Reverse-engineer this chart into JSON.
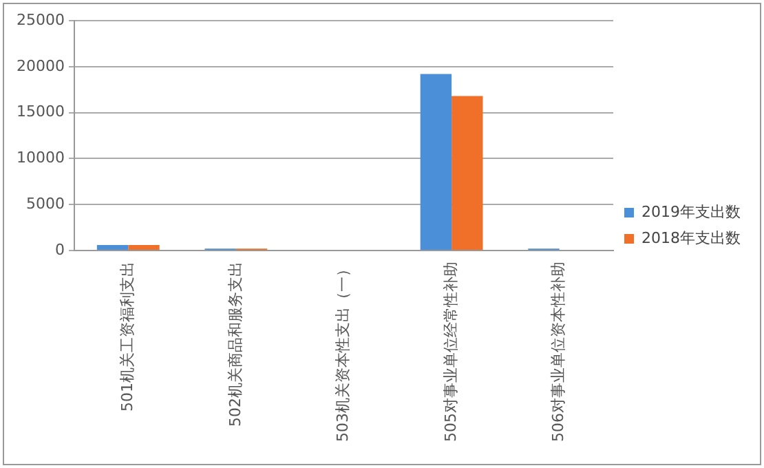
{
  "chart_data": {
    "type": "bar",
    "categories": [
      "501机关工资福利支出",
      "502机关商品和服务支出",
      "503机关资本性支出（一）",
      "505对事业单位经常性补助",
      "506对事业单位资本性补助"
    ],
    "series": [
      {
        "name": "2019年支出数",
        "color": "#4a8fd8",
        "values": [
          600,
          200,
          0,
          19200,
          200
        ]
      },
      {
        "name": "2018年支出数",
        "color": "#f0702a",
        "values": [
          600,
          200,
          0,
          16800,
          0
        ]
      }
    ],
    "ylim": [
      0,
      25000
    ],
    "yticks": [
      0,
      5000,
      10000,
      15000,
      20000,
      25000
    ],
    "grid": "y",
    "legend": "right"
  }
}
